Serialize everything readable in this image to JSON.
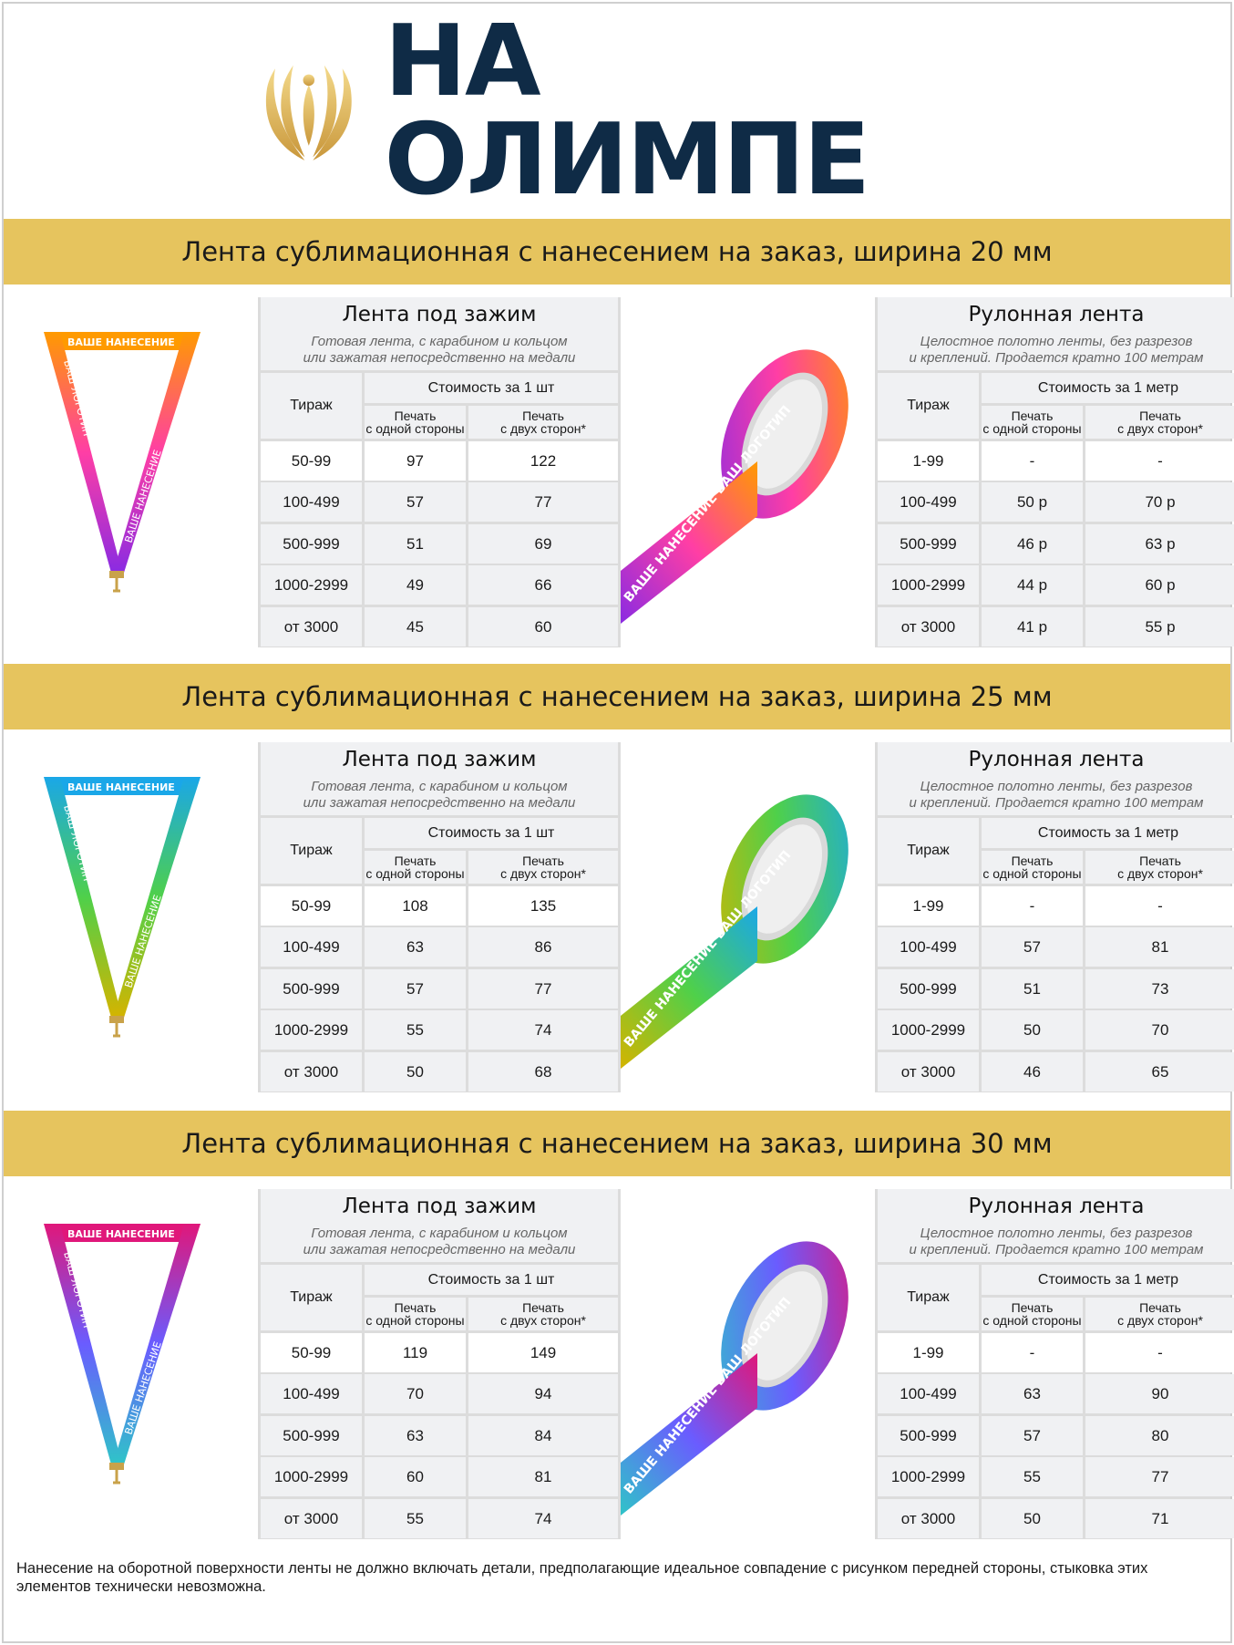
{
  "brand": {
    "name": "НА ОЛИМПЕ",
    "logo_icon": "golden-laurel-flame-icon",
    "gold": "#d3aa4c",
    "navy": "#0f2b46"
  },
  "band_color": "#e6c45e",
  "sections": [
    {
      "title": "Лента сублимационная с нанесением на заказ, ширина 20 мм",
      "clip": {
        "title": "Лента под зажим",
        "subtitle1": "Готовая лента, с карабином и кольцом",
        "subtitle2": "или зажатая непосредственно на медали",
        "col_tirazh": "Тираж",
        "price_header": "Стоимость за 1 шт",
        "col1a": "Печать",
        "col1b": "с одной стороны",
        "col2a": "Печать",
        "col2b": "с двух сторон*",
        "rows": [
          [
            "50-99",
            "97",
            "122"
          ],
          [
            "100-499",
            "57",
            "77"
          ],
          [
            "500-999",
            "51",
            "69"
          ],
          [
            "1000-2999",
            "49",
            "66"
          ],
          [
            "от 3000",
            "45",
            "60"
          ]
        ]
      },
      "roll": {
        "title": "Рулонная лента",
        "subtitle1": "Целостное полотно ленты, без разрезов",
        "subtitle2": "и креплений. Продается кратно 100 метрам",
        "col_tirazh": "Тираж",
        "price_header": "Стоимость за 1 метр",
        "col1a": "Печать",
        "col1b": "с одной стороны",
        "col2a": "Печать",
        "col2b": "с двух сторон*",
        "rows": [
          [
            "1-99",
            "-",
            "-"
          ],
          [
            "100-499",
            "50 р",
            "70 р"
          ],
          [
            "500-999",
            "46 р",
            "63 р"
          ],
          [
            "1000-2999",
            "44 р",
            "60 р"
          ],
          [
            "от 3000",
            "41 р",
            "55 р"
          ]
        ]
      },
      "lanyard_text_a": "ВАШЕ НАНЕСЕНИЕ",
      "lanyard_text_b": "ВАШ ЛОГОТИП",
      "roll_text": "ВАШЕ НАНЕСЕНИЕ  ВАШ ЛОГОТИП",
      "gradient": [
        "#ff9a00",
        "#ff3ea5",
        "#8a2be2"
      ]
    },
    {
      "title": "Лента сублимационная с нанесением на заказ, ширина 25 мм",
      "clip": {
        "title": "Лента под зажим",
        "subtitle1": "Готовая лента, с карабином и кольцом",
        "subtitle2": "или зажатая непосредственно на медали",
        "col_tirazh": "Тираж",
        "price_header": "Стоимость за 1 шт",
        "col1a": "Печать",
        "col1b": "с одной стороны",
        "col2a": "Печать",
        "col2b": "с двух сторон*",
        "rows": [
          [
            "50-99",
            "108",
            "135"
          ],
          [
            "100-499",
            "63",
            "86"
          ],
          [
            "500-999",
            "57",
            "77"
          ],
          [
            "1000-2999",
            "55",
            "74"
          ],
          [
            "от 3000",
            "50",
            "68"
          ]
        ]
      },
      "roll": {
        "title": "Рулонная лента",
        "subtitle1": "Целостное полотно ленты, без разрезов",
        "subtitle2": "и креплений. Продается кратно 100 метрам",
        "col_tirazh": "Тираж",
        "price_header": "Стоимость за 1 метр",
        "col1a": "Печать",
        "col1b": "с одной стороны",
        "col2a": "Печать",
        "col2b": "с двух сторон*",
        "rows": [
          [
            "1-99",
            "-",
            "-"
          ],
          [
            "100-499",
            "57",
            "81"
          ],
          [
            "500-999",
            "51",
            "73"
          ],
          [
            "1000-2999",
            "50",
            "70"
          ],
          [
            "от 3000",
            "46",
            "65"
          ]
        ]
      },
      "lanyard_text_a": "ВАШЕ НАНЕСЕНИЕ",
      "lanyard_text_b": "ВАШ ЛОГОТИП",
      "roll_text": "ВАШЕ НАНЕСЕНИЕ  ВАШ ЛОГОТИП",
      "gradient": [
        "#1aa7e8",
        "#4fd04a",
        "#d4b400"
      ]
    },
    {
      "title": "Лента сублимационная с нанесением на заказ, ширина  30 мм",
      "clip": {
        "title": "Лента под зажим",
        "subtitle1": "Готовая лента, с карабином и кольцом",
        "subtitle2": "или зажатая непосредственно на медали",
        "col_tirazh": "Тираж",
        "price_header": "Стоимость за 1 шт",
        "col1a": "Печать",
        "col1b": "с одной стороны",
        "col2a": "Печать",
        "col2b": "с двух сторон*",
        "rows": [
          [
            "50-99",
            "119",
            "149"
          ],
          [
            "100-499",
            "70",
            "94"
          ],
          [
            "500-999",
            "63",
            "84"
          ],
          [
            "1000-2999",
            "60",
            "81"
          ],
          [
            "от 3000",
            "55",
            "74"
          ]
        ]
      },
      "roll": {
        "title": "Рулонная лента",
        "subtitle1": "Целостное полотно ленты, без разрезов",
        "subtitle2": "и креплений. Продается кратно 100 метрам",
        "col_tirazh": "Тираж",
        "price_header": "Стоимость за 1 метр",
        "col1a": "Печать",
        "col1b": "с одной стороны",
        "col2a": "Печать",
        "col2b": "с двух сторон*",
        "rows": [
          [
            "1-99",
            "-",
            "-"
          ],
          [
            "100-499",
            "63",
            "90"
          ],
          [
            "500-999",
            "57",
            "80"
          ],
          [
            "1000-2999",
            "55",
            "77"
          ],
          [
            "от 3000",
            "50",
            "71"
          ]
        ]
      },
      "lanyard_text_a": "ВАШЕ НАНЕСЕНИЕ",
      "lanyard_text_b": "ВАШ ЛОГОТИП",
      "roll_text": "ВАШЕ НАНЕСЕНИЕ  ВАШ ЛОГОТИП",
      "gradient": [
        "#e0177a",
        "#6a5cff",
        "#2fc4c8"
      ]
    }
  ],
  "footer_note": "Нанесение на оборотной  поверхности ленты не должно включать детали, предполагающие идеальное совпадение с рисунком передней стороны, стыковка этих элементов технически невозможна."
}
